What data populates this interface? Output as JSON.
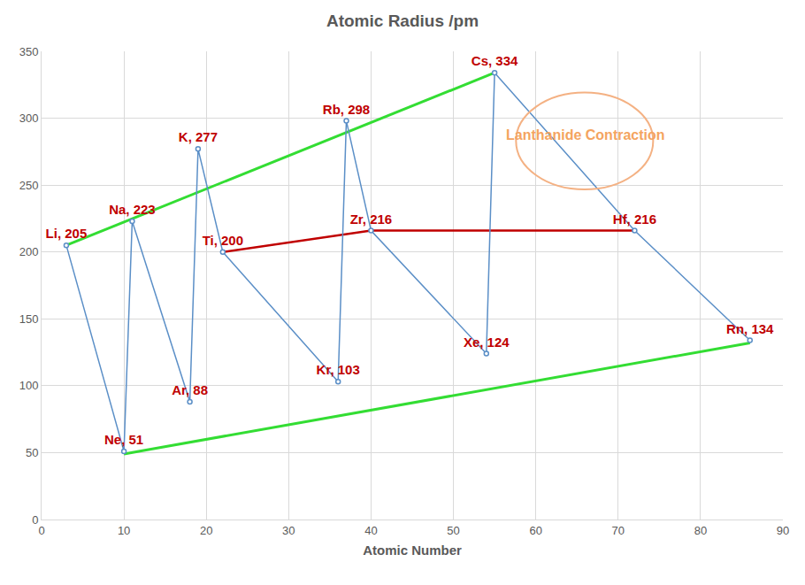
{
  "chart_data": {
    "type": "line",
    "title": "Atomic Radius /pm",
    "x_label": "Atomic Number",
    "annotations": [
      "Lanthanide Contraction"
    ],
    "xlim": [
      0,
      90
    ],
    "xticks": [
      0,
      10,
      20,
      30,
      40,
      50,
      60,
      70,
      80,
      90
    ],
    "ylim": [
      0,
      350
    ],
    "yticks": [
      0,
      50,
      100,
      150,
      200,
      250,
      300,
      350
    ],
    "grid": true,
    "data_labels": true,
    "series": [
      {
        "color": "#5b8fc7",
        "marker": "circle",
        "line_style": "solid",
        "x": [
          3,
          10,
          11,
          18,
          19,
          22,
          36,
          37,
          40,
          54,
          55,
          72,
          86
        ],
        "values": [
          205,
          51,
          223,
          88,
          277,
          200,
          103,
          298,
          216,
          124,
          334,
          216,
          134
        ],
        "value_labels": [
          "Li, 205",
          "Ne, 51",
          "Na, 223",
          "Ar, 88",
          "K, 277",
          "Ti, 200",
          "Kr, 103",
          "Rb, 298",
          "Zr, 216",
          "Xe, 124",
          "Cs, 334",
          "Hf, 216",
          "Rn, 134"
        ]
      },
      {
        "color": "#33dd33",
        "marker": "none",
        "line_style": "solid",
        "x": [
          3,
          55
        ],
        "values": [
          205,
          334
        ]
      },
      {
        "color": "#33dd33",
        "marker": "none",
        "line_style": "solid",
        "x": [
          10,
          86
        ],
        "values": [
          49,
          132
        ]
      },
      {
        "color": "#c00000",
        "marker": "none",
        "line_style": "solid",
        "x": [
          22,
          40,
          72
        ],
        "values": [
          200,
          216,
          216
        ]
      }
    ]
  }
}
